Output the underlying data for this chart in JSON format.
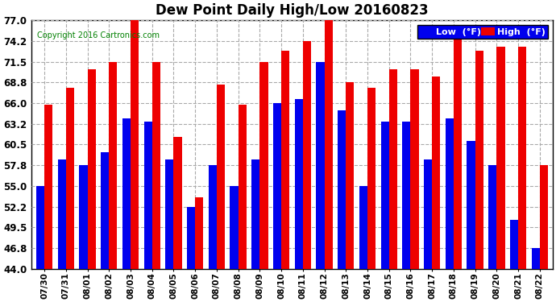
{
  "title": "Dew Point Daily High/Low 20160823",
  "copyright": "Copyright 2016 Cartronics.com",
  "dates": [
    "07/30",
    "07/31",
    "08/01",
    "08/02",
    "08/03",
    "08/04",
    "08/05",
    "08/06",
    "08/07",
    "08/08",
    "08/09",
    "08/10",
    "08/11",
    "08/12",
    "08/13",
    "08/14",
    "08/15",
    "08/16",
    "08/17",
    "08/18",
    "08/19",
    "08/20",
    "08/21",
    "08/22"
  ],
  "low": [
    55.0,
    58.5,
    57.8,
    59.5,
    64.0,
    63.5,
    58.5,
    52.2,
    57.8,
    55.0,
    58.5,
    66.0,
    66.5,
    71.5,
    65.0,
    55.0,
    63.5,
    63.5,
    58.5,
    64.0,
    61.0,
    57.8,
    50.5,
    46.8
  ],
  "high": [
    65.8,
    68.0,
    70.5,
    71.5,
    77.0,
    71.5,
    61.5,
    53.5,
    68.5,
    65.8,
    71.5,
    73.0,
    74.2,
    77.2,
    68.8,
    68.0,
    70.5,
    70.5,
    69.5,
    75.0,
    73.0,
    73.5,
    73.5,
    57.8
  ],
  "ylim_min": 44.0,
  "ylim_max": 77.0,
  "yticks": [
    44.0,
    46.8,
    49.5,
    52.2,
    55.0,
    57.8,
    60.5,
    63.2,
    66.0,
    68.8,
    71.5,
    74.2,
    77.0
  ],
  "low_color": "#0000ee",
  "high_color": "#ee0000",
  "bg_color": "#ffffff",
  "grid_color": "#aaaaaa",
  "bar_width": 0.38,
  "legend_low_label": "Low  (°F)",
  "legend_high_label": "High  (°F)",
  "legend_low_bg": "#0000ee",
  "legend_high_bg": "#ee0000"
}
